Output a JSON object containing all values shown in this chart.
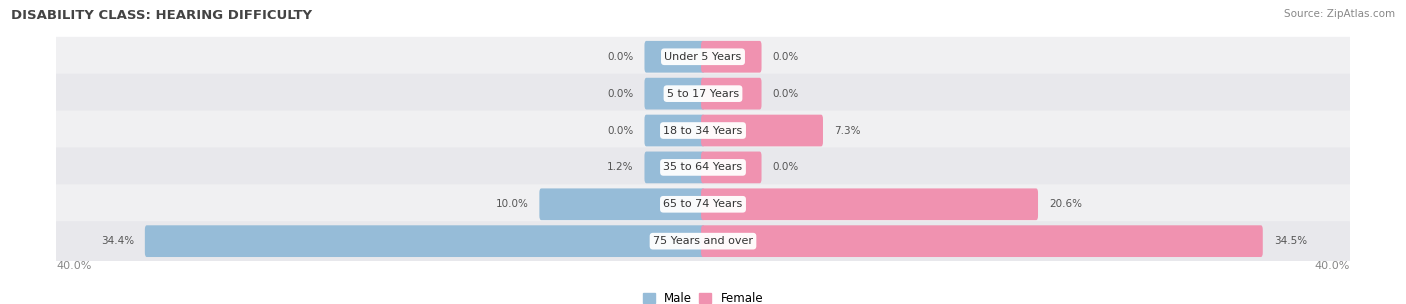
{
  "title": "DISABILITY CLASS: HEARING DIFFICULTY",
  "source": "Source: ZipAtlas.com",
  "categories": [
    "Under 5 Years",
    "5 to 17 Years",
    "18 to 34 Years",
    "35 to 64 Years",
    "65 to 74 Years",
    "75 Years and over"
  ],
  "male_values": [
    0.0,
    0.0,
    0.0,
    1.2,
    10.0,
    34.4
  ],
  "female_values": [
    0.0,
    0.0,
    7.3,
    0.0,
    20.6,
    34.5
  ],
  "max_val": 40.0,
  "male_color": "#96bcd8",
  "female_color": "#f092b0",
  "row_bg_even": "#f0f0f2",
  "row_bg_odd": "#e8e8ec",
  "label_color": "#555555",
  "title_color": "#444444",
  "source_color": "#888888",
  "axis_label_color": "#888888",
  "min_bar_val": 3.5
}
